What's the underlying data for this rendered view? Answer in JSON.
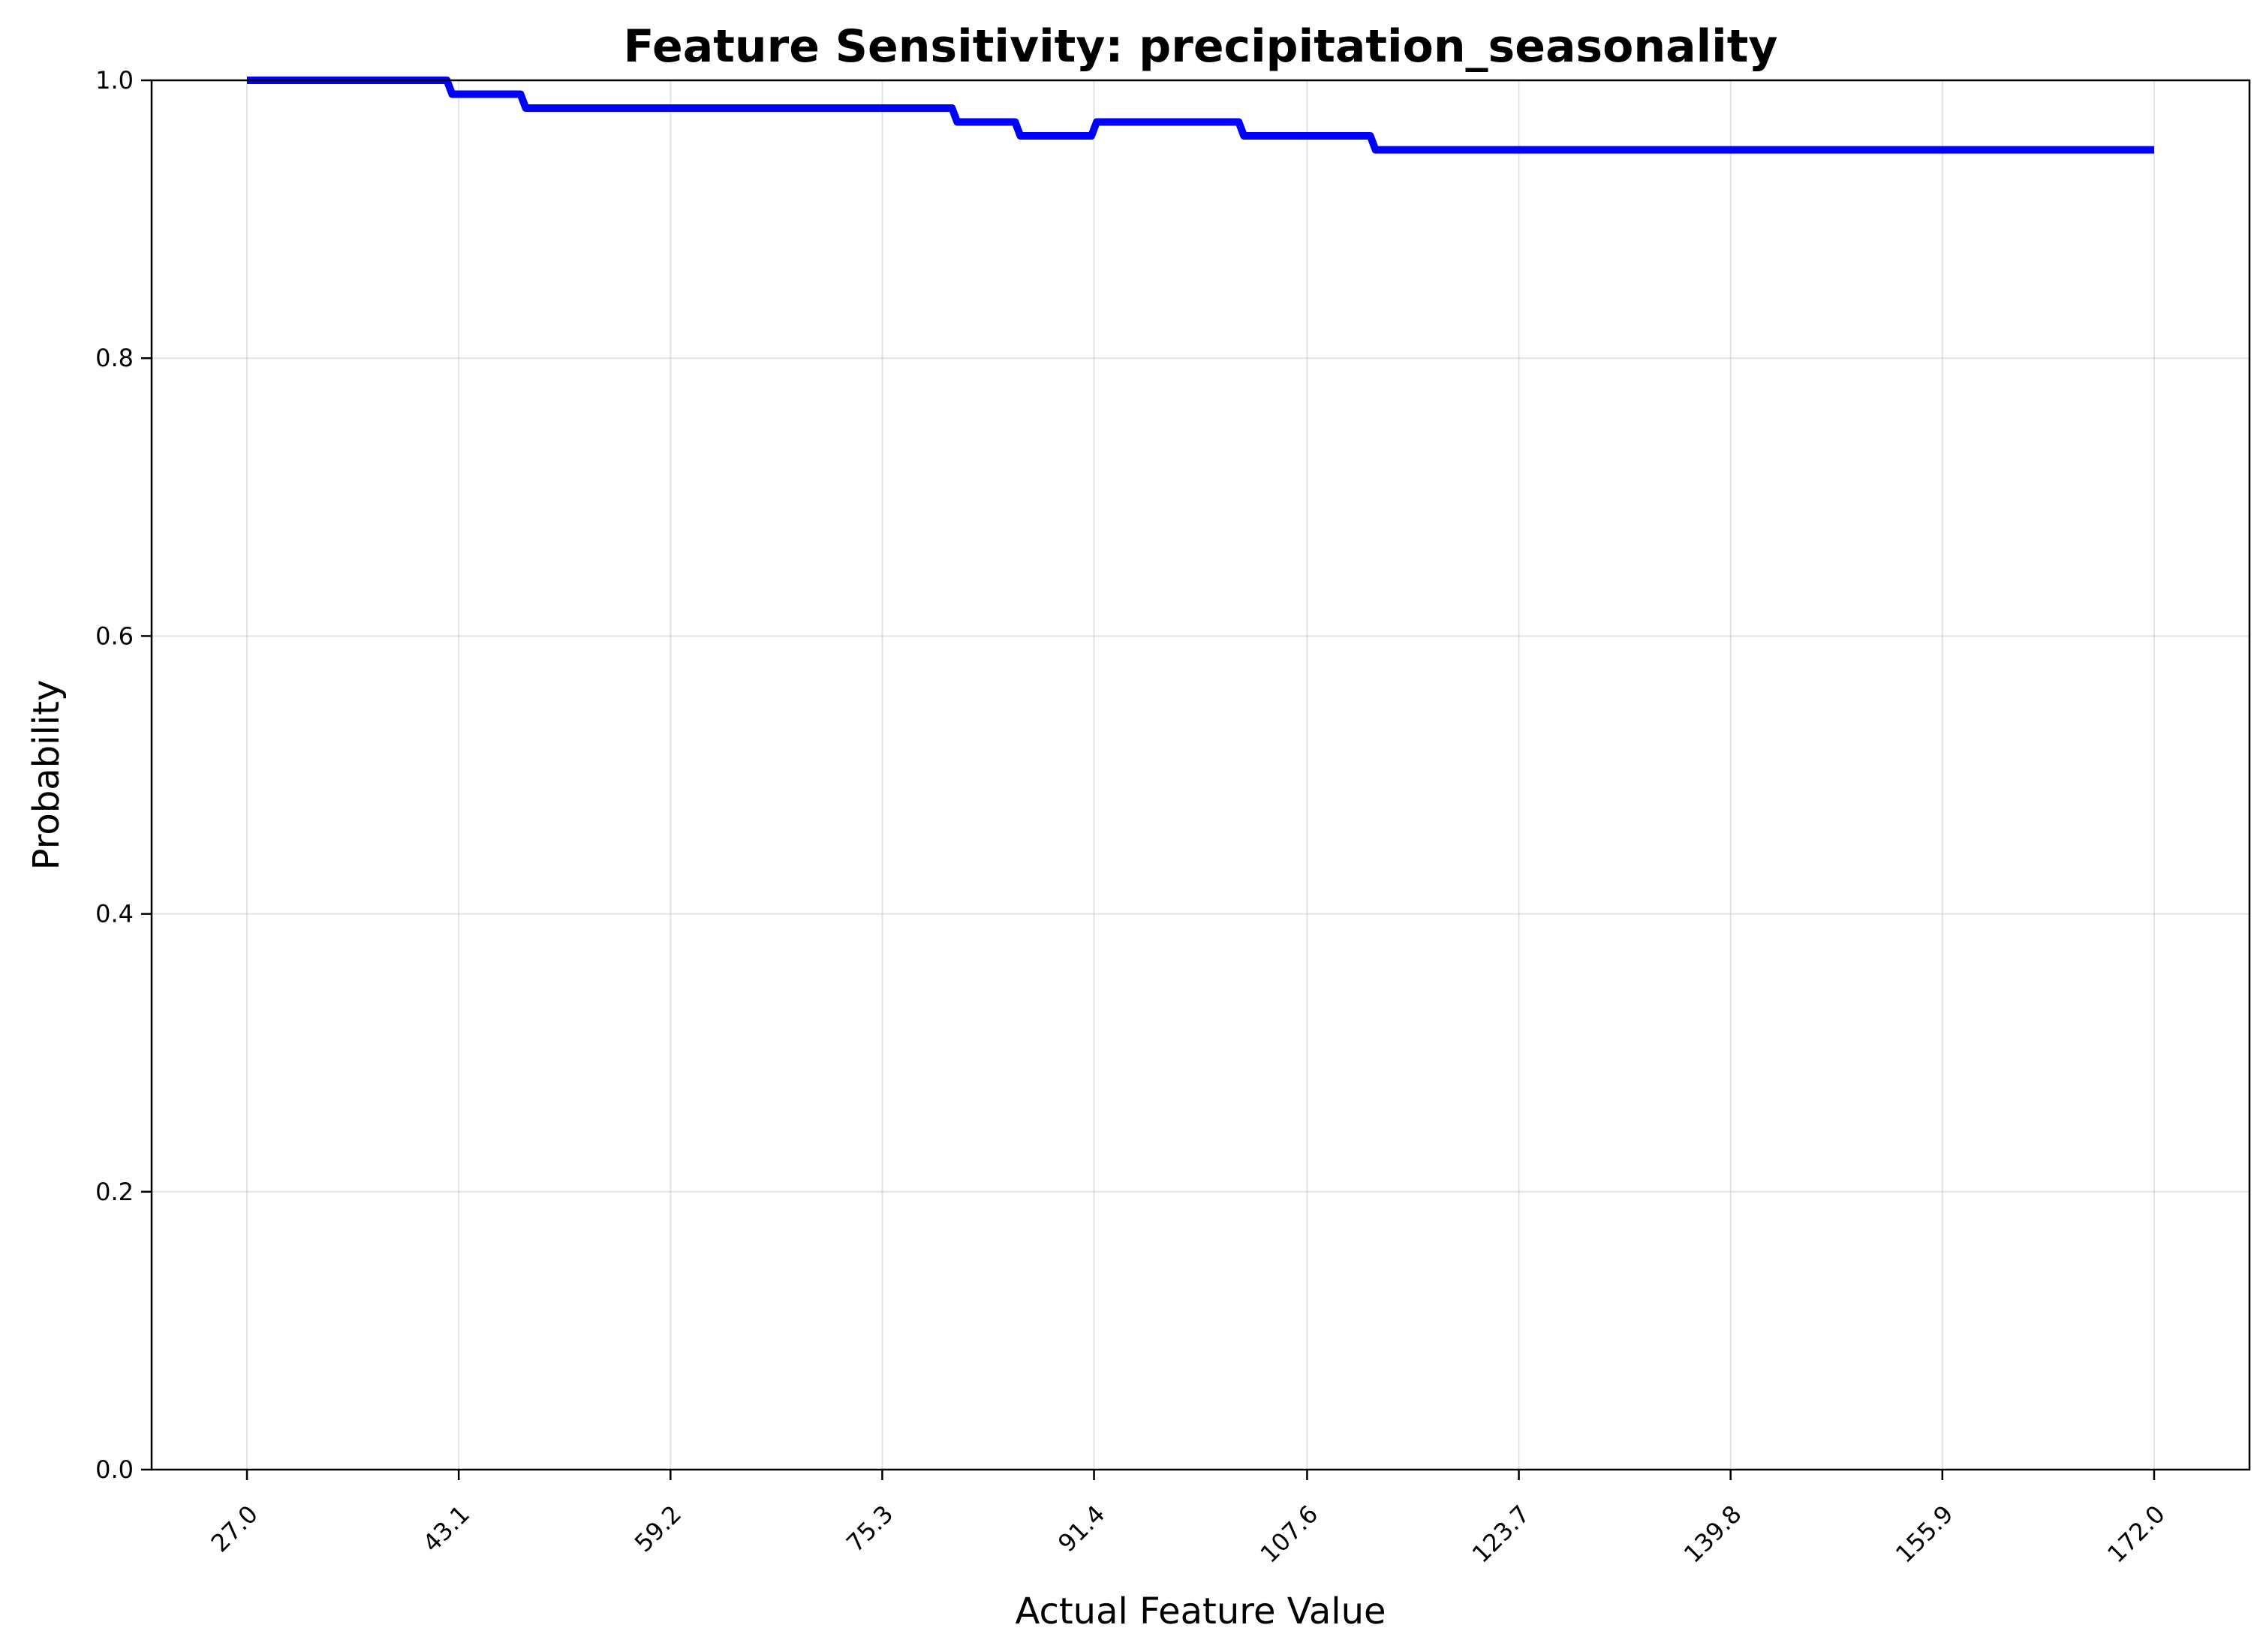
{
  "chart_data": {
    "type": "line",
    "title": "Feature Sensitivity: precipitation_seasonality",
    "xlabel": "Actual Feature Value",
    "ylabel": "Probability",
    "xlim": [
      19.75,
      179.25
    ],
    "ylim": [
      0.0,
      1.0
    ],
    "x_ticks": [
      27.0,
      43.1,
      59.2,
      75.3,
      91.4,
      107.6,
      123.7,
      139.8,
      155.9,
      172.0
    ],
    "x_tick_labels": [
      "27.0",
      "43.1",
      "59.2",
      "75.3",
      "91.4",
      "107.6",
      "123.7",
      "139.8",
      "155.9",
      "172.0"
    ],
    "y_ticks": [
      0.0,
      0.2,
      0.4,
      0.6,
      0.8,
      1.0
    ],
    "y_tick_labels": [
      "0.0",
      "0.2",
      "0.4",
      "0.6",
      "0.8",
      "1.0"
    ],
    "grid": true,
    "series": [
      {
        "color": "#0000ff",
        "x": [
          27.0,
          42.2,
          42.6,
          47.8,
          48.2,
          80.6,
          81.0,
          85.4,
          85.8,
          91.2,
          91.6,
          102.4,
          102.8,
          112.4,
          112.8,
          172.0
        ],
        "y": [
          1.0,
          1.0,
          0.99,
          0.99,
          0.98,
          0.98,
          0.97,
          0.97,
          0.96,
          0.96,
          0.97,
          0.97,
          0.96,
          0.96,
          0.95,
          0.95
        ]
      }
    ]
  }
}
